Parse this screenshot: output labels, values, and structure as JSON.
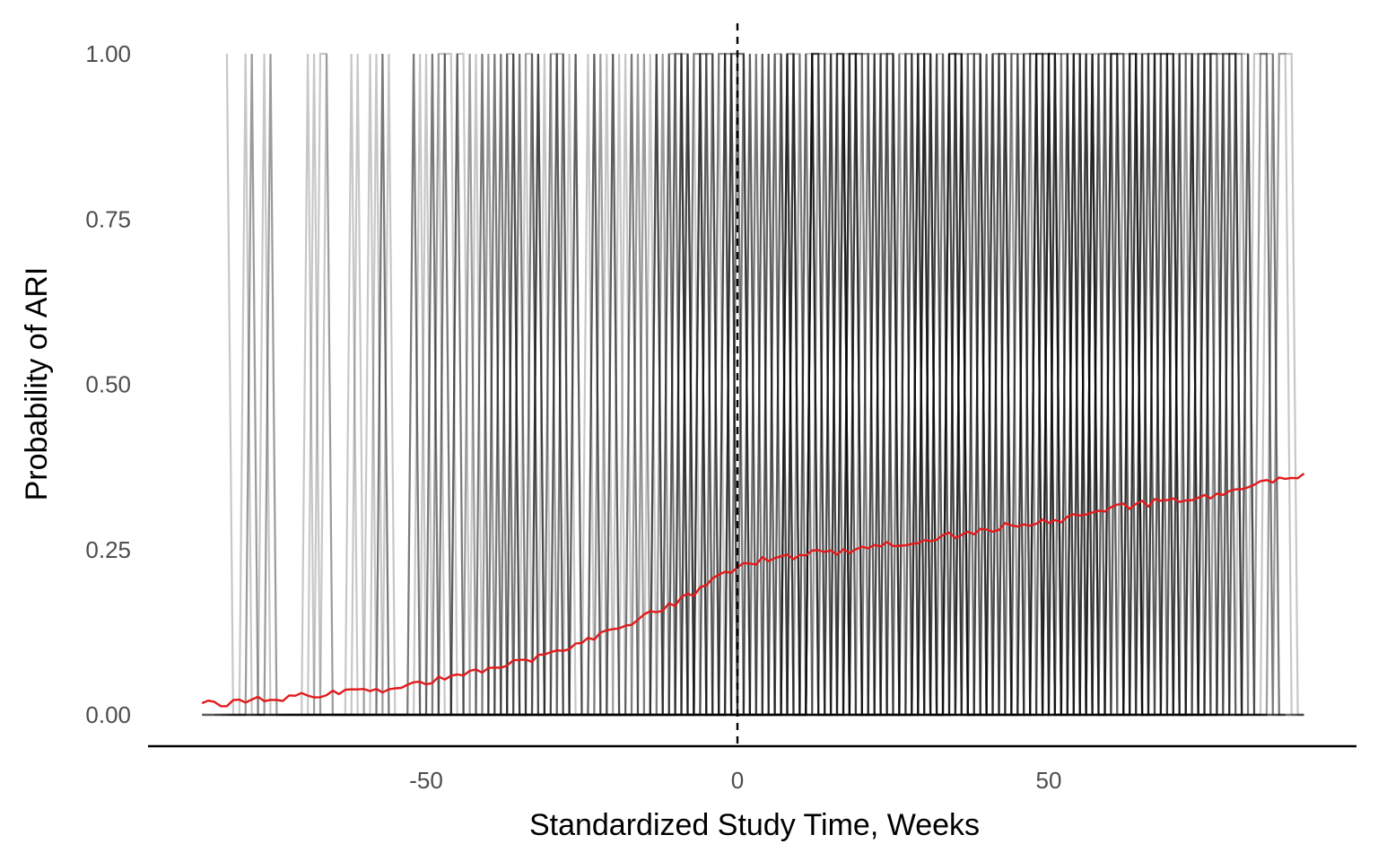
{
  "chart_data": {
    "type": "line",
    "title": "",
    "xlabel": "Standardized Study Time, Weeks",
    "ylabel": "Probability of ARI",
    "xlim": [
      -95,
      100
    ],
    "ylim": [
      -0.045,
      1.045
    ],
    "x_ticks": [
      -50,
      0,
      50
    ],
    "x_tick_labels": [
      "-50",
      "0",
      "50"
    ],
    "y_ticks": [
      0,
      0.25,
      0.5,
      0.75,
      1
    ],
    "y_tick_labels": [
      "0.00",
      "0.25",
      "0.50",
      "0.75",
      "1.00"
    ],
    "grid": false,
    "reference_line": {
      "x": 0,
      "style": "dashed",
      "color": "#000000"
    },
    "series": [
      {
        "role": "individual binary trajectories",
        "color": "#000000",
        "x_range": [
          -86,
          91
        ],
        "values": [
          0,
          1
        ]
      },
      {
        "role": "mean probability",
        "color": "#e31a1c",
        "x": [
          -86,
          -80,
          -75,
          -70,
          -65,
          -60,
          -55,
          -50,
          -45,
          -40,
          -35,
          -30,
          -25,
          -20,
          -15,
          -10,
          -5,
          0,
          5,
          10,
          15,
          20,
          25,
          30,
          35,
          40,
          45,
          50,
          55,
          60,
          65,
          70,
          75,
          80,
          85,
          91
        ],
        "y": [
          0.015,
          0.02,
          0.024,
          0.028,
          0.031,
          0.036,
          0.042,
          0.05,
          0.058,
          0.067,
          0.08,
          0.095,
          0.11,
          0.128,
          0.15,
          0.17,
          0.195,
          0.225,
          0.235,
          0.242,
          0.245,
          0.25,
          0.258,
          0.265,
          0.272,
          0.28,
          0.29,
          0.295,
          0.3,
          0.31,
          0.32,
          0.325,
          0.33,
          0.34,
          0.35,
          0.365
        ]
      }
    ]
  }
}
